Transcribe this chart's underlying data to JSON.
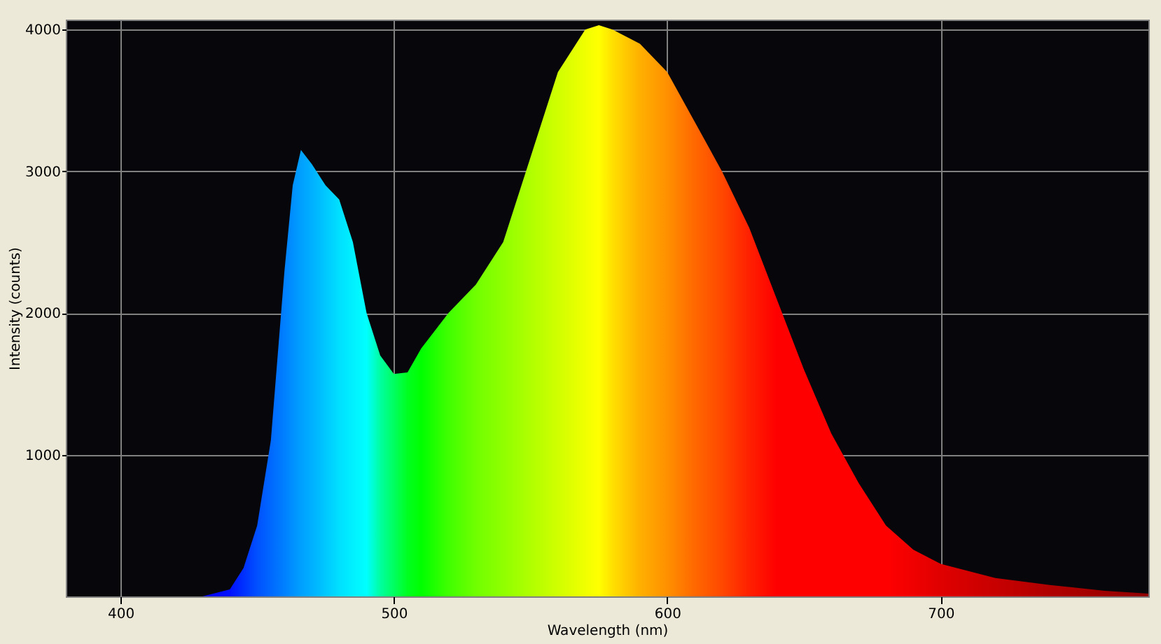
{
  "chart_data": {
    "type": "area",
    "xlabel": "Wavelength (nm)",
    "ylabel": "Intensity (counts)",
    "x": [
      380,
      420,
      430,
      440,
      445,
      450,
      455,
      460,
      463,
      466,
      470,
      475,
      480,
      485,
      490,
      495,
      500,
      505,
      510,
      520,
      530,
      540,
      550,
      560,
      570,
      575,
      580,
      590,
      600,
      610,
      620,
      630,
      640,
      650,
      660,
      670,
      680,
      690,
      700,
      720,
      740,
      760,
      776
    ],
    "values": [
      0,
      0,
      0,
      50,
      200,
      500,
      1100,
      2300,
      2900,
      3150,
      3050,
      2900,
      2800,
      2500,
      2000,
      1700,
      1570,
      1580,
      1750,
      2000,
      2200,
      2500,
      3100,
      3700,
      4000,
      4030,
      4000,
      3900,
      3700,
      3350,
      3000,
      2600,
      2100,
      1600,
      1150,
      800,
      500,
      330,
      230,
      130,
      80,
      40,
      20
    ],
    "colors": [
      "#0000ff",
      "#0000ff",
      "#0000ff",
      "#0010ff",
      "#0030ff",
      "#0050ff",
      "#0068ff",
      "#0080ff",
      "#0090ff",
      "#00a0ff",
      "#00b0ff",
      "#00c8ff",
      "#00e0ff",
      "#00f0ff",
      "#00ffff",
      "#00ffa0",
      "#00ff60",
      "#00ff20",
      "#00ff00",
      "#40ff00",
      "#70ff00",
      "#90ff00",
      "#b0ff00",
      "#d0ff00",
      "#f0ff00",
      "#ffff00",
      "#ffe000",
      "#ffb000",
      "#ff9000",
      "#ff6800",
      "#ff4800",
      "#ff2000",
      "#ff0000",
      "#ff0000",
      "#ff0000",
      "#ff0000",
      "#ff0000",
      "#f00000",
      "#e00000",
      "#c80000",
      "#b00000",
      "#a00000",
      "#900000"
    ],
    "xlim": [
      380,
      776
    ],
    "xticks": [
      400,
      500,
      600,
      700
    ],
    "ylim": [
      0,
      4070
    ],
    "yticks": [
      1000,
      2000,
      3000,
      4000
    ],
    "grid": true
  }
}
